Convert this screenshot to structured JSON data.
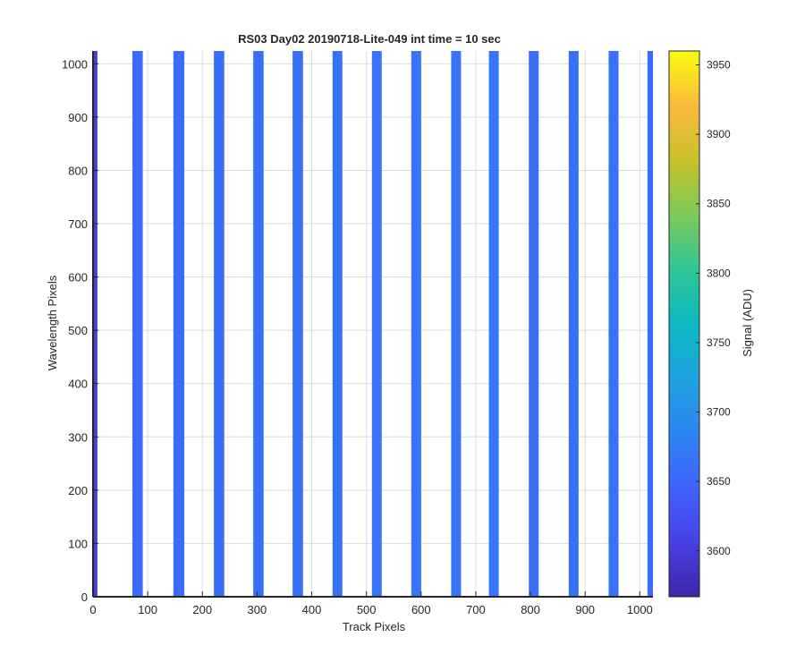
{
  "chart_data": {
    "type": "heatmap",
    "title": "RS03 Day02 20190718-Lite-049 int time = 10 sec",
    "xlabel": "Track Pixels",
    "ylabel": "Wavelength Pixels",
    "xlim": [
      0,
      1024
    ],
    "ylim": [
      0,
      1024
    ],
    "xticks": [
      "0",
      "100",
      "200",
      "300",
      "400",
      "500",
      "600",
      "700",
      "800",
      "900",
      "1000"
    ],
    "yticks": [
      "0",
      "100",
      "200",
      "300",
      "400",
      "500",
      "600",
      "700",
      "800",
      "900",
      "1000"
    ],
    "grid": true,
    "colormap": "parula",
    "colorbar": {
      "label": "Signal (ADU)",
      "limits": [
        3567,
        3960
      ],
      "ticks": [
        "3600",
        "3650",
        "3700",
        "3750",
        "3800",
        "3850",
        "3900",
        "3950"
      ]
    },
    "background_color": "#ffffff",
    "bands": [
      {
        "x_start": 0,
        "x_end": 8,
        "value": 3600
      },
      {
        "x_start": 72,
        "x_end": 91,
        "value": 3655
      },
      {
        "x_start": 147,
        "x_end": 167,
        "value": 3655
      },
      {
        "x_start": 221,
        "x_end": 240,
        "value": 3660
      },
      {
        "x_start": 293,
        "x_end": 312,
        "value": 3660
      },
      {
        "x_start": 365,
        "x_end": 384,
        "value": 3662
      },
      {
        "x_start": 438,
        "x_end": 456,
        "value": 3662
      },
      {
        "x_start": 510,
        "x_end": 528,
        "value": 3665
      },
      {
        "x_start": 582,
        "x_end": 600,
        "value": 3665
      },
      {
        "x_start": 655,
        "x_end": 673,
        "value": 3665
      },
      {
        "x_start": 724,
        "x_end": 742,
        "value": 3665
      },
      {
        "x_start": 797,
        "x_end": 815,
        "value": 3662
      },
      {
        "x_start": 870,
        "x_end": 888,
        "value": 3662
      },
      {
        "x_start": 943,
        "x_end": 961,
        "value": 3662
      },
      {
        "x_start": 1014,
        "x_end": 1024,
        "value": 3655
      }
    ]
  }
}
